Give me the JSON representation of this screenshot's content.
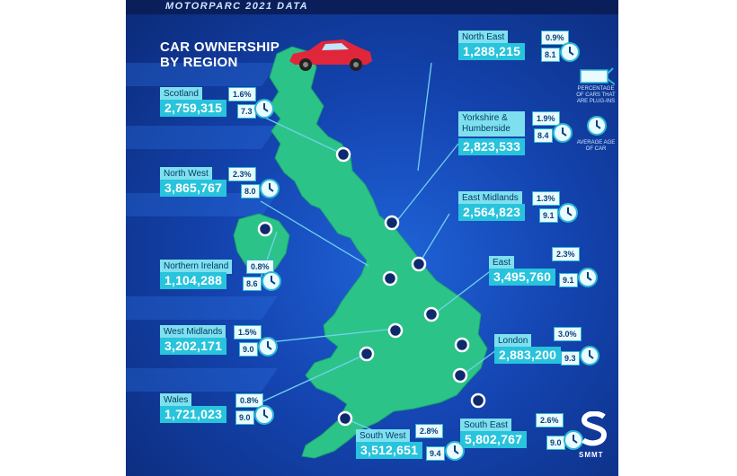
{
  "header": {
    "text": "MOTORPARC 2021 DATA"
  },
  "title": {
    "line1": "CAR OWNERSHIP",
    "line2": "BY REGION"
  },
  "legend": {
    "plugin_label": "PERCENTAGE OF CARS THAT ARE PLUG-INS",
    "age_label": "AVERAGE AGE OF CAR",
    "plug_icon": "plug-icon",
    "clock_icon": "clock-icon"
  },
  "logo": {
    "text": "SMMT"
  },
  "colors": {
    "land": "#2cc388",
    "sea": "#1444b0",
    "card": "#28c3dc",
    "dot": "#0e2a6e"
  },
  "regions": [
    {
      "name": "Scotland",
      "count": "2,759,315",
      "plugin": "1.6%",
      "age": "7.3"
    },
    {
      "name": "North West",
      "count": "3,865,767",
      "plugin": "2.3%",
      "age": "8.0"
    },
    {
      "name": "Northern Ireland",
      "count": "1,104,288",
      "plugin": "0.8%",
      "age": "8.6"
    },
    {
      "name": "West Midlands",
      "count": "3,202,171",
      "plugin": "1.5%",
      "age": "9.0"
    },
    {
      "name": "Wales",
      "count": "1,721,023",
      "plugin": "0.8%",
      "age": "9.0"
    },
    {
      "name": "North East",
      "count": "1,288,215",
      "plugin": "0.9%",
      "age": "8.1"
    },
    {
      "name": "Yorkshire & Humberside",
      "count": "2,823,533",
      "plugin": "1.9%",
      "age": "8.4"
    },
    {
      "name": "East Midlands",
      "count": "2,564,823",
      "plugin": "1.3%",
      "age": "9.1"
    },
    {
      "name": "East",
      "count": "3,495,760",
      "plugin": "2.3%",
      "age": "9.1"
    },
    {
      "name": "London",
      "count": "2,883,200",
      "plugin": "3.0%",
      "age": "9.3"
    },
    {
      "name": "South East",
      "count": "5,802,767",
      "plugin": "2.6%",
      "age": "9.0"
    },
    {
      "name": "South West",
      "count": "3,512,651",
      "plugin": "2.8%",
      "age": "9.4"
    }
  ]
}
